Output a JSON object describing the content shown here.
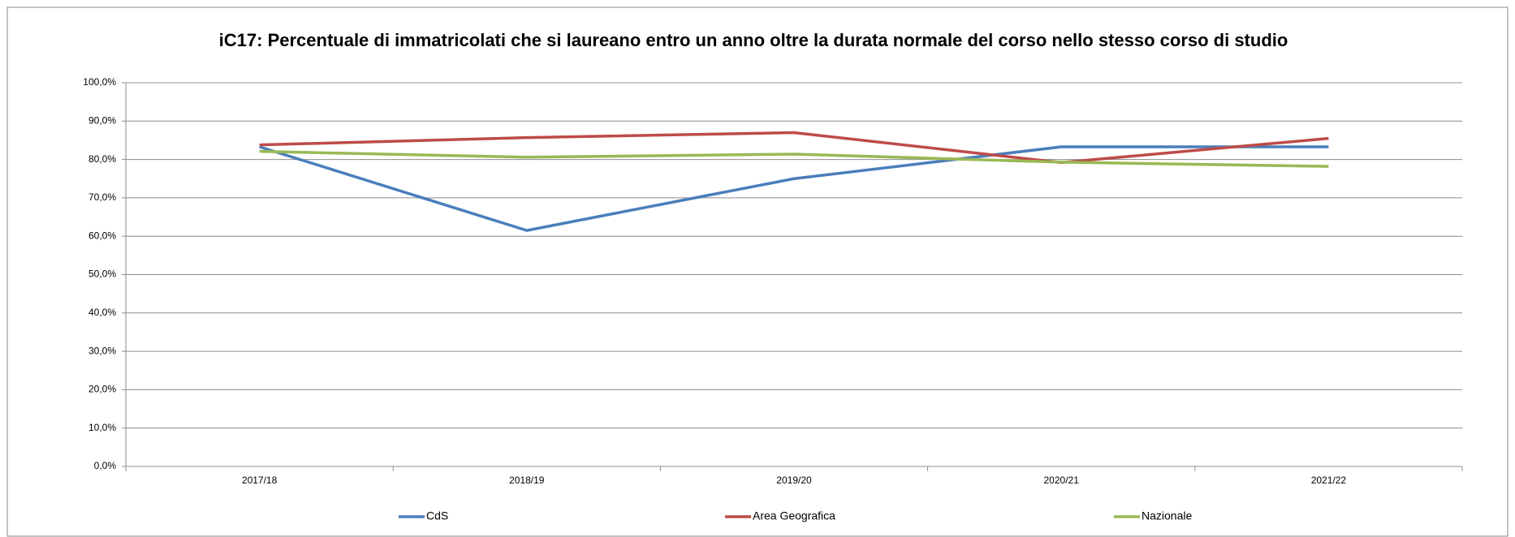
{
  "chart_data": {
    "type": "line",
    "title": "iC17: Percentuale di immatricolati che si laureano entro un anno oltre la durata normale del corso nello stesso corso di studio",
    "categories": [
      "2017/18",
      "2018/19",
      "2019/20",
      "2020/21",
      "2021/22"
    ],
    "series": [
      {
        "name": "CdS",
        "color": "#4a7ebb",
        "values": [
          83.3,
          61.5,
          75.0,
          83.3,
          83.3
        ]
      },
      {
        "name": "Area Geografica",
        "color": "#be4b48",
        "values": [
          83.8,
          85.7,
          87.0,
          79.2,
          85.5
        ]
      },
      {
        "name": "Nazionale",
        "color": "#98b954",
        "values": [
          82.1,
          80.6,
          81.4,
          79.3,
          78.2
        ]
      }
    ],
    "ylim": [
      0,
      100
    ],
    "yticks": [
      {
        "value": 0,
        "label": "0,0%"
      },
      {
        "value": 10,
        "label": "10,0%"
      },
      {
        "value": 20,
        "label": "20,0%"
      },
      {
        "value": 30,
        "label": "30,0%"
      },
      {
        "value": 40,
        "label": "40,0%"
      },
      {
        "value": 50,
        "label": "50,0%"
      },
      {
        "value": 60,
        "label": "60,0%"
      },
      {
        "value": 70,
        "label": "70,0%"
      },
      {
        "value": 80,
        "label": "80,0%"
      },
      {
        "value": 90,
        "label": "90,0%"
      },
      {
        "value": 100,
        "label": "100,0%"
      }
    ],
    "grid": true,
    "legend": "bottom"
  }
}
